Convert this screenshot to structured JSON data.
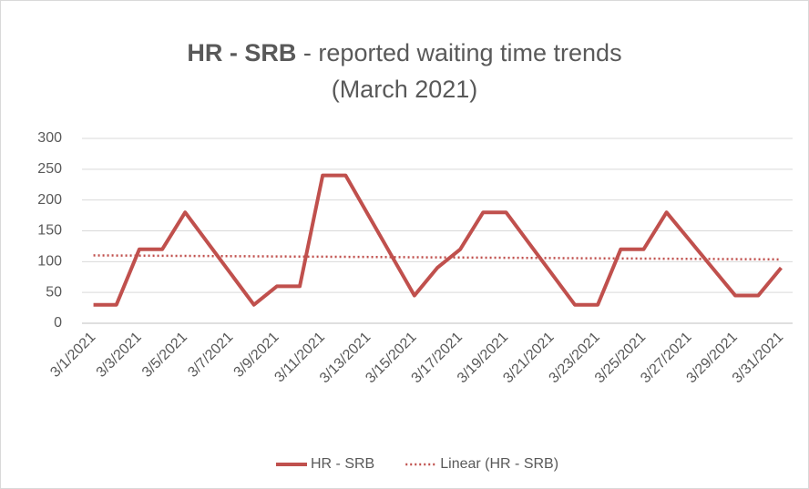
{
  "chart_data": {
    "type": "line",
    "title_bold": "HR - SRB",
    "title": "- reported waiting time trends",
    "subtitle": "(March 2021)",
    "categories": [
      "3/1/2021",
      null,
      "3/3/2021",
      null,
      "3/5/2021",
      null,
      "3/7/2021",
      null,
      "3/9/2021",
      null,
      "3/11/2021",
      null,
      "3/13/2021",
      null,
      "3/15/2021",
      null,
      "3/17/2021",
      null,
      "3/19/2021",
      null,
      "3/21/2021",
      null,
      "3/23/2021",
      null,
      "3/25/2021",
      null,
      "3/27/2021",
      null,
      "3/29/2021",
      null,
      "3/31/2021"
    ],
    "series": [
      {
        "name": "HR - SRB",
        "color": "#c0504d",
        "values": [
          30,
          30,
          120,
          120,
          180,
          130,
          80,
          30,
          60,
          60,
          240,
          240,
          175,
          110,
          45,
          90,
          120,
          180,
          180,
          130,
          80,
          30,
          30,
          120,
          120,
          180,
          135,
          90,
          45,
          45,
          90
        ]
      }
    ],
    "trendline": {
      "name": "Linear (HR - SRB)",
      "fit": "linear",
      "color": "#c0504d"
    },
    "ylim": [
      0,
      300
    ],
    "yticks": [
      0,
      50,
      100,
      150,
      200,
      250,
      300
    ],
    "grid": true,
    "legend": "bottom"
  }
}
